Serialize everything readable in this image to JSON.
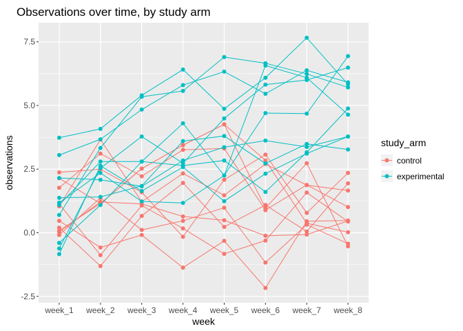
{
  "chart_data": {
    "type": "line",
    "title": "Observations over time, by study arm",
    "xlabel": "week",
    "ylabel": "observations",
    "categories": [
      "week_1",
      "week_2",
      "week_3",
      "week_4",
      "week_5",
      "week_6",
      "week_7",
      "week_8"
    ],
    "ylim": [
      -2.75,
      8.25
    ],
    "yticks": [
      -2.5,
      0.0,
      2.5,
      5.0,
      7.5
    ],
    "ytick_labels": [
      "-2.5",
      "0.0",
      "2.5",
      "5.0",
      "7.5"
    ],
    "grid": true,
    "legend": {
      "title": "study_arm",
      "position": "right",
      "entries": [
        {
          "name": "control",
          "color": "#F8766D"
        },
        {
          "name": "experimental",
          "color": "#00BFC4"
        }
      ]
    },
    "series": [
      {
        "group": "control",
        "values": [
          0.2,
          -1.31,
          0.66,
          1.96,
          0.23,
          1.09,
          0.05,
          1.94
        ]
      },
      {
        "group": "control",
        "values": [
          1.13,
          -0.88,
          1.07,
          0.17,
          -0.83,
          -0.31,
          1.58,
          0.44
        ]
      },
      {
        "group": "control",
        "values": [
          1.77,
          3.11,
          2.22,
          3.26,
          3.31,
          0.89,
          1.88,
          1.01
        ]
      },
      {
        "group": "control",
        "values": [
          1.04,
          3.66,
          1.22,
          2.33,
          1.47,
          2.7,
          1.87,
          1.66
        ]
      },
      {
        "group": "control",
        "values": [
          0.47,
          -0.58,
          -0.09,
          -1.37,
          -0.32,
          -2.17,
          0.45,
          0.48
        ]
      },
      {
        "group": "control",
        "values": [
          2.37,
          2.5,
          1.59,
          -0.16,
          2.08,
          3.07,
          0.78,
          2.35
        ]
      },
      {
        "group": "control",
        "values": [
          0.03,
          1.21,
          1.13,
          0.64,
          0.49,
          -0.12,
          -0.07,
          0.46
        ]
      },
      {
        "group": "control",
        "values": [
          -0.09,
          1.37,
          0.11,
          0.47,
          0.98,
          -1.17,
          0.32,
          -0.43
        ]
      },
      {
        "group": "control",
        "values": [
          0.08,
          1.15,
          2.52,
          3.44,
          4.26,
          0.97,
          2.73,
          -0.53
        ]
      },
      {
        "group": "control",
        "values": [
          2.14,
          1.15,
          2.52,
          3.44,
          4.26,
          2.84,
          0.37,
          0.02
        ]
      },
      {
        "group": "experimental",
        "values": [
          3.05,
          3.67,
          4.84,
          5.8,
          6.33,
          5.46,
          6.38,
          5.91
        ]
      },
      {
        "group": "experimental",
        "values": [
          -0.84,
          2.63,
          1.64,
          2.58,
          1.24,
          2.32,
          3.11,
          3.78
        ]
      },
      {
        "group": "experimental",
        "values": [
          2.15,
          2.08,
          1.82,
          2.84,
          3.36,
          3.62,
          3.37,
          3.78
        ]
      },
      {
        "group": "experimental",
        "values": [
          -0.62,
          2.54,
          3.78,
          2.73,
          4.49,
          5.82,
          6.0,
          6.49
        ]
      },
      {
        "group": "experimental",
        "values": [
          0.7,
          3.33,
          5.34,
          5.57,
          6.9,
          6.66,
          6.24,
          5.71
        ]
      },
      {
        "group": "experimental",
        "values": [
          3.73,
          4.08,
          5.4,
          6.41,
          4.87,
          6.09,
          7.66,
          5.83
        ]
      },
      {
        "group": "experimental",
        "values": [
          1.18,
          2.35,
          1.23,
          1.17,
          2.25,
          4.7,
          4.68,
          6.94
        ]
      },
      {
        "group": "experimental",
        "values": [
          1.37,
          1.41,
          1.84,
          3.6,
          3.8,
          2.72,
          3.49,
          3.27
        ]
      },
      {
        "group": "experimental",
        "values": [
          -0.4,
          1.09,
          2.8,
          4.3,
          2.25,
          6.57,
          6.09,
          4.64
        ]
      },
      {
        "group": "experimental",
        "values": [
          1.09,
          2.8,
          2.8,
          2.64,
          2.84,
          1.6,
          3.16,
          4.88
        ]
      }
    ]
  }
}
